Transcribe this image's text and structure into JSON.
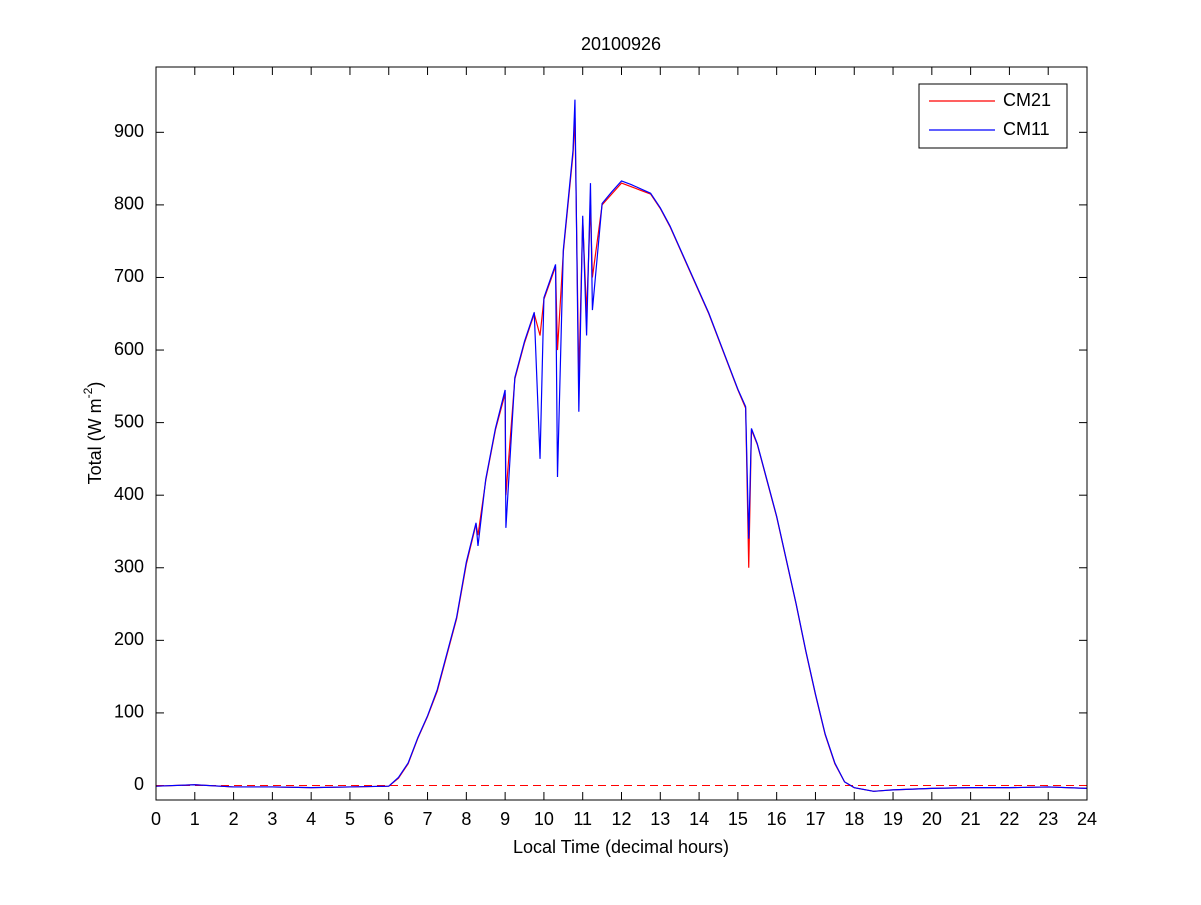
{
  "chart_data": {
    "type": "line",
    "title": "20100926",
    "xlabel": "Local Time (decimal hours)",
    "ylabel": {
      "text": "Total (W m",
      "sup": "-2",
      "suffix": ")"
    },
    "x": [
      0,
      1,
      2,
      3,
      4,
      5,
      6,
      6.25,
      6.5,
      6.75,
      7,
      7.25,
      7.5,
      7.75,
      8,
      8.25,
      8.3,
      8.5,
      8.75,
      9,
      9.02,
      9.25,
      9.5,
      9.75,
      9.9,
      10,
      10.3,
      10.35,
      10.5,
      10.75,
      10.8,
      10.9,
      11,
      11.1,
      11.2,
      11.25,
      11.5,
      11.75,
      12,
      12.25,
      12.5,
      12.75,
      13,
      13.25,
      13.5,
      13.75,
      14,
      14.25,
      14.5,
      14.75,
      15,
      15.2,
      15.28,
      15.35,
      15.5,
      15.75,
      16,
      16.25,
      16.5,
      16.75,
      17,
      17.25,
      17.5,
      17.75,
      18,
      18.5,
      19,
      20,
      21,
      22,
      23,
      24
    ],
    "series": [
      {
        "name": "CM21",
        "color": "#ff0000",
        "values": [
          -1,
          1,
          -2,
          -2,
          -3,
          -2,
          -1,
          10,
          30,
          65,
          95,
          130,
          180,
          230,
          305,
          360,
          345,
          420,
          490,
          540,
          400,
          560,
          610,
          650,
          620,
          670,
          715,
          600,
          735,
          870,
          920,
          560,
          780,
          650,
          800,
          700,
          800,
          815,
          830,
          825,
          820,
          815,
          795,
          770,
          740,
          710,
          680,
          650,
          615,
          580,
          545,
          520,
          300,
          490,
          470,
          420,
          370,
          310,
          250,
          185,
          125,
          70,
          30,
          5,
          -3,
          -8,
          -6,
          -4,
          -3,
          -3,
          -2,
          -4
        ]
      },
      {
        "name": "CM11",
        "color": "#0000ff",
        "values": [
          -1,
          1,
          -2,
          -2,
          -3,
          -2,
          -1,
          11,
          31,
          66,
          96,
          132,
          182,
          232,
          308,
          362,
          330,
          422,
          492,
          545,
          355,
          562,
          612,
          652,
          450,
          672,
          718,
          425,
          738,
          875,
          945,
          515,
          785,
          620,
          830,
          655,
          802,
          818,
          833,
          828,
          822,
          816,
          796,
          771,
          741,
          711,
          681,
          651,
          616,
          581,
          546,
          522,
          340,
          492,
          471,
          421,
          371,
          311,
          251,
          186,
          126,
          71,
          31,
          5,
          -3,
          -8,
          -6,
          -4,
          -3,
          -3,
          -2,
          -4
        ]
      }
    ],
    "hline": 0,
    "xlim": [
      0,
      24
    ],
    "xticks": [
      0,
      1,
      2,
      3,
      4,
      5,
      6,
      7,
      8,
      9,
      10,
      11,
      12,
      13,
      14,
      15,
      16,
      17,
      18,
      19,
      20,
      21,
      22,
      23,
      24
    ],
    "ylim": [
      -20,
      990
    ],
    "yticks": [
      0,
      100,
      200,
      300,
      400,
      500,
      600,
      700,
      800,
      900
    ],
    "legend": "top-right",
    "grid": false
  }
}
